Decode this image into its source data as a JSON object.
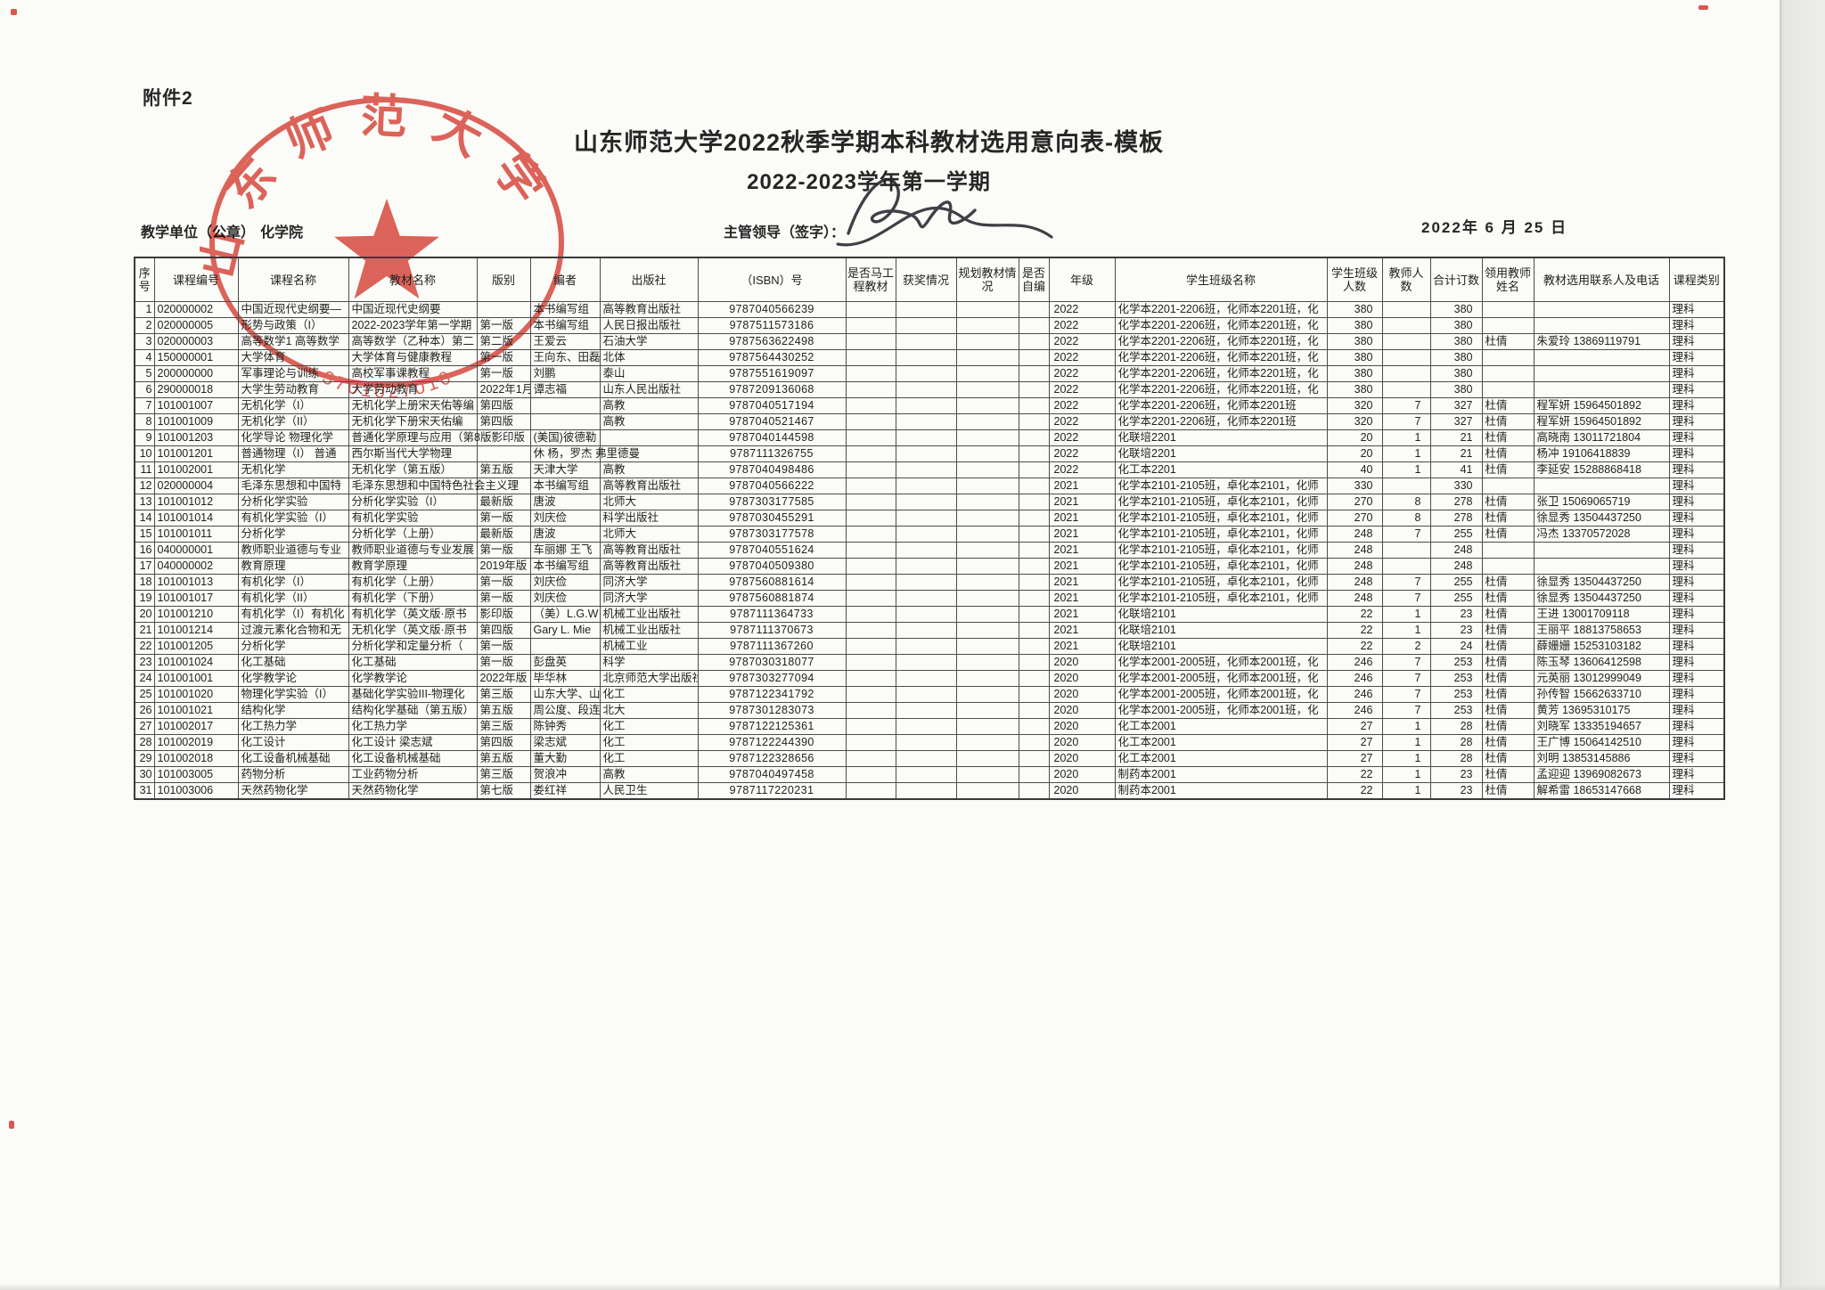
{
  "page": {
    "attachment_label": "附件2",
    "title": "山东师范大学2022秋季学期本科教材选用意向表-模板",
    "subtitle": "2022-2023学年第一学期",
    "unit_label": "教学单位（公章）",
    "unit_value": "化学院",
    "leader_label": "主管领导（签字）：",
    "date_text": "2022年 6 月 25 日"
  },
  "stamp": {
    "arc_text": "山东师范大学",
    "code": "3701027010",
    "color": "#d6382c"
  },
  "table": {
    "headers": [
      "序号",
      "课程编号",
      "课程名称",
      "教材名称",
      "版别",
      "编者",
      "出版社",
      "（ISBN）号",
      "是否马工程教材",
      "获奖情况",
      "规划教材情况",
      "是否自编",
      "年级",
      "学生班级名称",
      "学生班级人数",
      "教师人数",
      "合计订数",
      "领用教师姓名",
      "教材选用联系人及电话",
      "课程类别"
    ],
    "rows": [
      [
        "1",
        "020000002",
        "中国近现代史纲要—",
        "中国近现代史纲要",
        "",
        "本书编写组",
        "高等教育出版社",
        "9787040566239",
        "",
        "",
        "",
        "",
        "2022",
        "化学本2201-2206班，化师本2201班，化",
        "380",
        "",
        "380",
        "",
        "",
        "理科"
      ],
      [
        "2",
        "020000005",
        "形势与政策（I）",
        "2022-2023学年第一学期",
        "第一版",
        "本书编写组",
        "人民日报出版社",
        "9787511573186",
        "",
        "",
        "",
        "",
        "2022",
        "化学本2201-2206班，化师本2201班，化",
        "380",
        "",
        "380",
        "",
        "",
        "理科"
      ],
      [
        "3",
        "020000003",
        "高等数学1 高等数学",
        "高等数学（乙种本）第二",
        "第二版",
        "王爱云",
        "石油大学",
        "9787563622498",
        "",
        "",
        "",
        "",
        "2022",
        "化学本2201-2206班，化师本2201班，化",
        "380",
        "",
        "380",
        "杜倩",
        "朱爱玲 13869119791",
        "理科"
      ],
      [
        "4",
        "150000001",
        "大学体育",
        "大学体育与健康教程",
        "第一版",
        "王向东、田磊",
        "北体",
        "9787564430252",
        "",
        "",
        "",
        "",
        "2022",
        "化学本2201-2206班，化师本2201班，化",
        "380",
        "",
        "380",
        "",
        "",
        "理科"
      ],
      [
        "5",
        "200000000",
        "军事理论与训练",
        "高校军事课教程",
        "第一版",
        "刘鹏",
        "泰山",
        "9787551619097",
        "",
        "",
        "",
        "",
        "2022",
        "化学本2201-2206班，化师本2201班，化",
        "380",
        "",
        "380",
        "",
        "",
        "理科"
      ],
      [
        "6",
        "290000018",
        "大学生劳动教育",
        "大学劳动教育",
        "2022年1月",
        "谭志福",
        "山东人民出版社",
        "9787209136068",
        "",
        "",
        "",
        "",
        "2022",
        "化学本2201-2206班，化师本2201班，化",
        "380",
        "",
        "380",
        "",
        "",
        "理科"
      ],
      [
        "7",
        "101001007",
        "无机化学（I）",
        "无机化学上册宋天佑等编",
        "第四版",
        "",
        "高教",
        "9787040517194",
        "",
        "",
        "",
        "",
        "2022",
        "化学本2201-2206班，化师本2201班",
        "320",
        "7",
        "327",
        "杜倩",
        "程军妍 15964501892",
        "理科"
      ],
      [
        "8",
        "101001009",
        "无机化学（II）",
        "无机化学下册宋天佑编",
        "第四版",
        "",
        "高教",
        "9787040521467",
        "",
        "",
        "",
        "",
        "2022",
        "化学本2201-2206班，化师本2201班",
        "320",
        "7",
        "327",
        "杜倩",
        "程军妍 15964501892",
        "理科"
      ],
      [
        "9",
        "101001203",
        "化学导论 物理化学",
        "普通化学原理与应用（第8版影印版",
        "",
        "(美国)彼德勒",
        "",
        "9787040144598",
        "",
        "",
        "",
        "",
        "2022",
        "化联培2201",
        "20",
        "1",
        "21",
        "杜倩",
        "高晓南 13011721804",
        "理科"
      ],
      [
        "10",
        "101001201",
        "普通物理（I） 普通",
        "西尔斯当代大学物理",
        "",
        "休 杨，罗杰 弗里德曼",
        "",
        "9787111326755",
        "",
        "",
        "",
        "",
        "2022",
        "化联培2201",
        "20",
        "1",
        "21",
        "杜倩",
        "杨冲  19106418839",
        "理科"
      ],
      [
        "11",
        "101002001",
        "无机化学",
        "无机化学（第五版）",
        "第五版",
        "天津大学",
        "高教",
        "9787040498486",
        "",
        "",
        "",
        "",
        "2022",
        "化工本2201",
        "40",
        "1",
        "41",
        "杜倩",
        "李延安 15288868418",
        "理科"
      ],
      [
        "12",
        "020000004",
        "毛泽东思想和中国特",
        "毛泽东思想和中国特色社会主义理",
        "",
        "本书编写组",
        "高等教育出版社",
        "9787040566222",
        "",
        "",
        "",
        "",
        "2021",
        "化学本2101-2105班，卓化本2101，化师",
        "330",
        "",
        "330",
        "",
        "",
        "理科"
      ],
      [
        "13",
        "101001012",
        "分析化学实验",
        "分析化学实验（I）",
        "最新版",
        "唐波",
        "北师大",
        "9787303177585",
        "",
        "",
        "",
        "",
        "2021",
        "化学本2101-2105班，卓化本2101，化师",
        "270",
        "8",
        "278",
        "杜倩",
        "张卫  15069065719",
        "理科"
      ],
      [
        "14",
        "101001014",
        "有机化学实验（I）",
        "有机化学实验",
        "第一版",
        "刘庆俭",
        "科学出版社",
        "9787030455291",
        "",
        "",
        "",
        "",
        "2021",
        "化学本2101-2105班，卓化本2101，化师",
        "270",
        "8",
        "278",
        "杜倩",
        "徐显秀 13504437250",
        "理科"
      ],
      [
        "15",
        "101001011",
        "分析化学",
        "分析化学（上册）",
        "最新版",
        "唐波",
        "北师大",
        "9787303177578",
        "",
        "",
        "",
        "",
        "2021",
        "化学本2101-2105班，卓化本2101，化师",
        "248",
        "7",
        "255",
        "杜倩",
        "冯杰 13370572028",
        "理科"
      ],
      [
        "16",
        "040000001",
        "教师职业道德与专业",
        "教师职业道德与专业发展",
        "第一版",
        "车丽娜 王飞",
        "高等教育出版社",
        "9787040551624",
        "",
        "",
        "",
        "",
        "2021",
        "化学本2101-2105班，卓化本2101，化师",
        "248",
        "",
        "248",
        "",
        "",
        "理科"
      ],
      [
        "17",
        "040000002",
        "教育原理",
        "教育学原理",
        "2019年版",
        "本书编写组",
        "高等教育出版社",
        "9787040509380",
        "",
        "",
        "",
        "",
        "2021",
        "化学本2101-2105班，卓化本2101，化师",
        "248",
        "",
        "248",
        "",
        "",
        "理科"
      ],
      [
        "18",
        "101001013",
        "有机化学（I）",
        "有机化学（上册）",
        "第一版",
        "刘庆俭",
        "同济大学",
        "9787560881614",
        "",
        "",
        "",
        "",
        "2021",
        "化学本2101-2105班，卓化本2101，化师",
        "248",
        "7",
        "255",
        "杜倩",
        "徐显秀 13504437250",
        "理科"
      ],
      [
        "19",
        "101001017",
        "有机化学（II）",
        "有机化学（下册）",
        "第一版",
        "刘庆俭",
        "同济大学",
        "9787560881874",
        "",
        "",
        "",
        "",
        "2021",
        "化学本2101-2105班，卓化本2101，化师",
        "248",
        "7",
        "255",
        "杜倩",
        "徐显秀 13504437250",
        "理科"
      ],
      [
        "20",
        "101001210",
        "有机化学（I）有机化",
        "有机化学（英文版·原书",
        "影印版",
        "（美）L.G.W",
        "机械工业出版社",
        "9787111364733",
        "",
        "",
        "",
        "",
        "2021",
        "化联培2101",
        "22",
        "1",
        "23",
        "杜倩",
        "王进  13001709118",
        "理科"
      ],
      [
        "21",
        "101001214",
        "过渡元素化合物和无",
        "无机化学（英文版·原书",
        "第四版",
        "Gary L. Mie",
        "机械工业出版社",
        "9787111370673",
        "",
        "",
        "",
        "",
        "2021",
        "化联培2101",
        "22",
        "1",
        "23",
        "杜倩",
        "王丽平 18813758653",
        "理科"
      ],
      [
        "22",
        "101001205",
        "分析化学",
        "分析化学和定量分析（",
        "第一版",
        "",
        "机械工业",
        "9787111367260",
        "",
        "",
        "",
        "",
        "2021",
        "化联培2101",
        "22",
        "2",
        "24",
        "杜倩",
        "薛姗姗 15253103182",
        "理科"
      ],
      [
        "23",
        "101001024",
        "化工基础",
        "化工基础",
        "第一版",
        "彭盘英",
        "科学",
        "9787030318077",
        "",
        "",
        "",
        "",
        "2020",
        "化学本2001-2005班，化师本2001班，化",
        "246",
        "7",
        "253",
        "杜倩",
        "陈玉琴 13606412598",
        "理科"
      ],
      [
        "24",
        "101001001",
        "化学教学论",
        "化学教学论",
        "2022年版",
        "毕华林",
        "北京师范大学出版社",
        "9787303277094",
        "",
        "",
        "",
        "",
        "2020",
        "化学本2001-2005班，化师本2001班，化",
        "246",
        "7",
        "253",
        "杜倩",
        "元英丽 13012999049",
        "理科"
      ],
      [
        "25",
        "101001020",
        "物理化学实验（I）",
        "基础化学实验III-物理化",
        "第三版",
        "山东大学、山",
        "化工",
        "9787122341792",
        "",
        "",
        "",
        "",
        "2020",
        "化学本2001-2005班，化师本2001班，化",
        "246",
        "7",
        "253",
        "杜倩",
        "孙传智 15662633710",
        "理科"
      ],
      [
        "26",
        "101001021",
        "结构化学",
        "结构化学基础（第五版）",
        "第五版",
        "周公度、段连",
        "北大",
        "9787301283073",
        "",
        "",
        "",
        "",
        "2020",
        "化学本2001-2005班，化师本2001班，化",
        "246",
        "7",
        "253",
        "杜倩",
        "黄芳  13695310175",
        "理科"
      ],
      [
        "27",
        "101002017",
        "化工热力学",
        "化工热力学",
        "第三版",
        "陈钟秀",
        "化工",
        "9787122125361",
        "",
        "",
        "",
        "",
        "2020",
        "化工本2001",
        "27",
        "1",
        "28",
        "杜倩",
        "刘晓军 13335194657",
        "理科"
      ],
      [
        "28",
        "101002019",
        "化工设计",
        "化工设计 梁志斌",
        "第四版",
        "梁志斌",
        "化工",
        "9787122244390",
        "",
        "",
        "",
        "",
        "2020",
        "化工本2001",
        "27",
        "1",
        "28",
        "杜倩",
        "王广博 15064142510",
        "理科"
      ],
      [
        "29",
        "101002018",
        "化工设备机械基础",
        "化工设备机械基础",
        "第五版",
        "董大勤",
        "化工",
        "9787122328656",
        "",
        "",
        "",
        "",
        "2020",
        "化工本2001",
        "27",
        "1",
        "28",
        "杜倩",
        "刘明  13853145886",
        "理科"
      ],
      [
        "30",
        "101003005",
        "药物分析",
        "工业药物分析",
        "第三版",
        "贺浪冲",
        "高教",
        "9787040497458",
        "",
        "",
        "",
        "",
        "2020",
        "制药本2001",
        "22",
        "1",
        "23",
        "杜倩",
        "孟迎迎 13969082673",
        "理科"
      ],
      [
        "31",
        "101003006",
        "天然药物化学",
        "天然药物化学",
        "第七版",
        "娄红祥",
        "人民卫生",
        "9787117220231",
        "",
        "",
        "",
        "",
        "2020",
        "制药本2001",
        "22",
        "1",
        "23",
        "杜倩",
        "解希雷 18653147668",
        "理科"
      ]
    ]
  }
}
